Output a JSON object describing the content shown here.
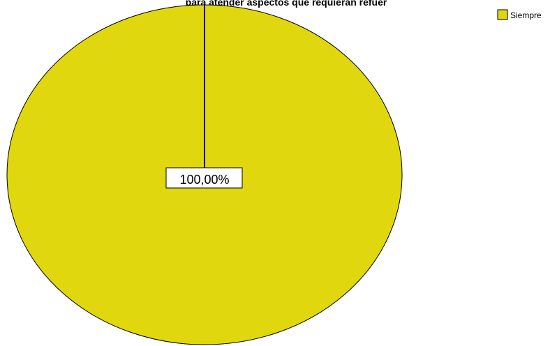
{
  "chart_data": {
    "type": "pie",
    "title": "para atender aspectos que requieran refuer",
    "categories": [
      "Siempre"
    ],
    "values": [
      100
    ],
    "data_labels": [
      "100,00%"
    ],
    "colors": [
      "#E1D70E"
    ],
    "legend": {
      "placement": "top-right",
      "entries": [
        "Siempre"
      ]
    }
  }
}
